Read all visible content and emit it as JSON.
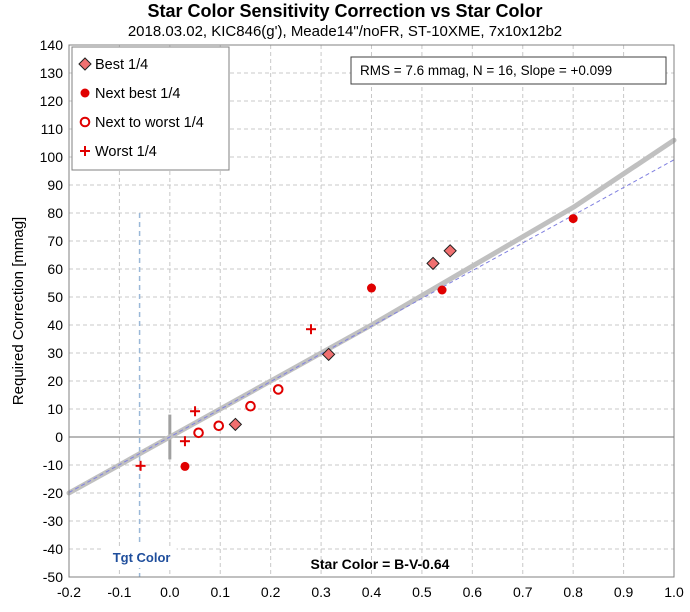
{
  "chart_data": {
    "type": "scatter",
    "title": "Star Color Sensitivity Correction vs Star Color",
    "subtitle": "2018.03.02, KIC846(g'), Meade14\"/noFR, ST-10XME, 7x10x12b2",
    "xlabel": "Star Color = B-V-0.64",
    "ylabel": "Required Correction [mmag]",
    "xlim": [
      -0.2,
      1.0
    ],
    "ylim": [
      -50,
      140
    ],
    "x_ticks": [
      "-0.2",
      "-0.1",
      "0.0",
      "0.1",
      "0.2",
      "0.3",
      "0.4",
      "0.5",
      "0.6",
      "0.7",
      "0.8",
      "0.9",
      "1.0"
    ],
    "y_ticks": [
      "-50",
      "-40",
      "-30",
      "-20",
      "-10",
      "0",
      "10",
      "20",
      "30",
      "40",
      "50",
      "60",
      "70",
      "80",
      "90",
      "100",
      "110",
      "120",
      "130",
      "140"
    ],
    "grid": true,
    "legend_position": "top-left",
    "stats_text": "RMS = 7.6 mmag, N = 16, Slope = +0.099",
    "target_label": "Tgt Color",
    "target_x": -0.06,
    "colors": {
      "marker": "#e00000",
      "diamond_fill": "#f07070",
      "fit": "#c0c0c0",
      "linear": "#8080e0",
      "target": "#9ab8d8",
      "target_label": "#1f4e9c"
    },
    "series": [
      {
        "name": "Best 1/4",
        "marker": "diamond",
        "points": [
          [
            0.13,
            4.5
          ],
          [
            0.315,
            29.5
          ],
          [
            0.522,
            62
          ],
          [
            0.556,
            66.5
          ]
        ]
      },
      {
        "name": "Next best 1/4",
        "marker": "filled-circle",
        "points": [
          [
            0.03,
            -10.5
          ],
          [
            0.4,
            53.2
          ],
          [
            0.54,
            52.5
          ],
          [
            0.8,
            78
          ]
        ]
      },
      {
        "name": "Next to worst 1/4",
        "marker": "open-circle",
        "points": [
          [
            0.057,
            1.5
          ],
          [
            0.097,
            4
          ],
          [
            0.16,
            11
          ],
          [
            0.215,
            17
          ]
        ]
      },
      {
        "name": "Worst 1/4",
        "marker": "plus",
        "points": [
          [
            -0.058,
            -10.3
          ],
          [
            0.03,
            -1.5
          ],
          [
            0.05,
            9.2
          ],
          [
            0.28,
            38.5
          ]
        ]
      }
    ],
    "fit_curve": {
      "x": [
        -0.2,
        0.0,
        0.2,
        0.4,
        0.6,
        0.8,
        1.0
      ],
      "y": [
        -20,
        0,
        20,
        40,
        61,
        82,
        106
      ]
    },
    "linear_fit": {
      "x": [
        -0.2,
        1.0
      ],
      "y": [
        -19.8,
        99
      ]
    }
  }
}
